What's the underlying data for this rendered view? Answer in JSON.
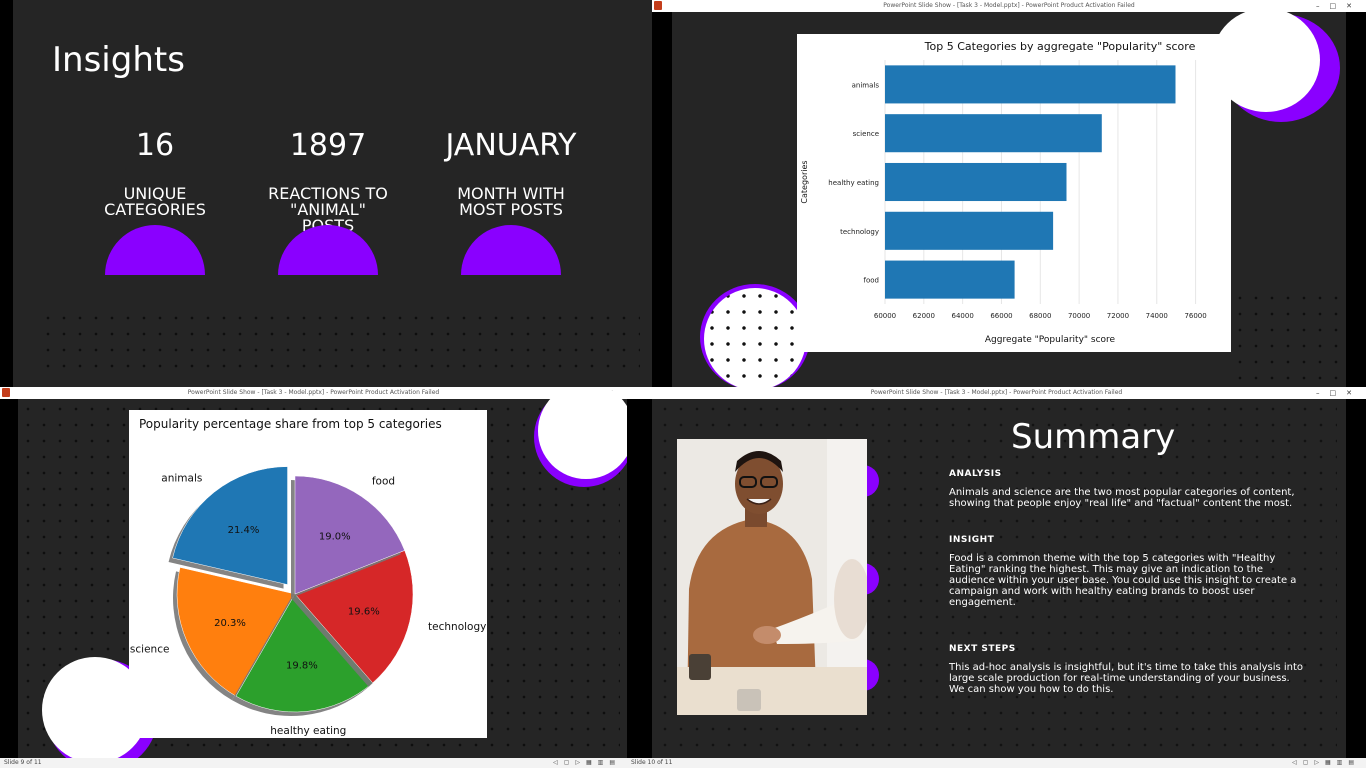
{
  "slide1": {
    "title": "Insights",
    "metrics": [
      {
        "value": "16",
        "label": "UNIQUE CATEGORIES"
      },
      {
        "value": "1897",
        "label": "REACTIONS TO \"ANIMAL\" POSTS"
      },
      {
        "value": "JANUARY",
        "label": "MONTH WITH MOST POSTS"
      }
    ]
  },
  "slide2": {
    "window_title": "PowerPoint Slide Show - [Task 3 - Model.pptx] - PowerPoint Product Activation Failed",
    "chart_data": {
      "type": "bar",
      "orientation": "horizontal",
      "title": "Top 5 Categories by aggregate \"Popularity\" score",
      "xlabel": "Aggregate \"Popularity\" score",
      "ylabel": "Categories",
      "categories": [
        "animals",
        "science",
        "healthy eating",
        "technology",
        "food"
      ],
      "values": [
        74965,
        71168,
        69350,
        68660,
        66676
      ],
      "xlim": [
        60000,
        77000
      ],
      "xticks": [
        "60000",
        "62000",
        "64000",
        "66000",
        "68000",
        "70000",
        "72000",
        "74000",
        "76000"
      ],
      "bar_color": "#1f77b4",
      "grid": true
    }
  },
  "slide3": {
    "window_title": "PowerPoint Slide Show - [Task 3 - Model.pptx] - PowerPoint Product Activation Failed",
    "status_left": "Slide 9 of 11",
    "chart_data": {
      "type": "pie",
      "title": "Popularity percentage share from top 5 categories",
      "slices": [
        {
          "label": "animals",
          "value": 21.4,
          "pct": "21.4%",
          "color": "#1f77b4",
          "exploded": true
        },
        {
          "label": "science",
          "value": 20.3,
          "pct": "20.3%",
          "color": "#ff7f0e"
        },
        {
          "label": "healthy eating",
          "value": 19.8,
          "pct": "19.8%",
          "color": "#2ca02c"
        },
        {
          "label": "technology",
          "value": 19.6,
          "pct": "19.6%",
          "color": "#d62728"
        },
        {
          "label": "food",
          "value": 19.0,
          "pct": "19.0%",
          "color": "#9467bd"
        }
      ],
      "shadow": true
    }
  },
  "slide4": {
    "window_title": "PowerPoint Slide Show - [Task 3 - Model.pptx] - PowerPoint Product Activation Failed",
    "status_left": "Slide 10 of 11",
    "title": "Summary",
    "sections": [
      {
        "heading": "ANALYSIS",
        "body": "Animals and science are the two most popular categories of content, showing that people enjoy \"real life\" and \"factual\" content the most."
      },
      {
        "heading": "INSIGHT",
        "body": "Food is a common theme with the top 5 categories with \"Healthy Eating\" ranking the highest. This may give an indication to the audience within your user base. You could use this insight to create a campaign and work with healthy eating brands to boost user engagement."
      },
      {
        "heading": "NEXT STEPS",
        "body": "This ad-hoc analysis is insightful, but it's time to take this analysis into large scale production for real-time understanding of your business. We can show you how to do this."
      }
    ]
  },
  "colors": {
    "accent": "#8a00ff",
    "slide_bg": "#252525"
  }
}
